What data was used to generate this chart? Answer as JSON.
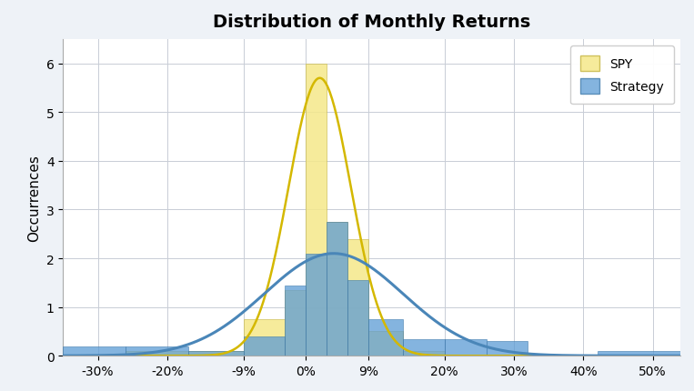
{
  "title": "Distribution of Monthly Returns",
  "ylabel": "Occurrences",
  "background_color": "#eef2f7",
  "plot_bg_color": "#ffffff",
  "grid_color": "#c8cdd6",
  "spy_color": "#f5e88a",
  "spy_edge_color": "#c8b84a",
  "strategy_color": "#5b9bd5",
  "strategy_edge_color": "#3a76a8",
  "spy_kde_color": "#d4b800",
  "strategy_kde_color": "#4a86b8",
  "spy_alpha": 0.85,
  "strategy_alpha": 0.75,
  "xtick_labels": [
    "-30%",
    "-20%",
    "-9%",
    "0%",
    "9%",
    "20%",
    "30%",
    "40%",
    "50%"
  ],
  "xtick_values": [
    -0.3,
    -0.2,
    -0.09,
    0.0,
    0.09,
    0.2,
    0.3,
    0.4,
    0.5
  ],
  "xlim": [
    -0.35,
    0.54
  ],
  "ylim": [
    0,
    6.5
  ],
  "bins": [
    -0.35,
    -0.26,
    -0.17,
    -0.09,
    -0.03,
    0.0,
    0.03,
    0.06,
    0.09,
    0.14,
    0.2,
    0.26,
    0.32,
    0.42,
    0.55
  ],
  "spy_counts": [
    0.0,
    0.1,
    0.1,
    0.75,
    1.35,
    6.0,
    2.75,
    2.4,
    0.5,
    0.1,
    0.0,
    0.0,
    0.0,
    0.0
  ],
  "strat_counts": [
    0.2,
    0.2,
    0.1,
    0.4,
    1.45,
    2.1,
    2.75,
    1.55,
    0.75,
    0.35,
    0.35,
    0.3,
    0.0,
    0.1
  ],
  "spy_kde_mean": 0.02,
  "spy_kde_std": 0.045,
  "spy_kde_peak": 5.7,
  "strat_kde_mean": 0.04,
  "strat_kde_std": 0.1,
  "strat_kde_peak": 2.1
}
